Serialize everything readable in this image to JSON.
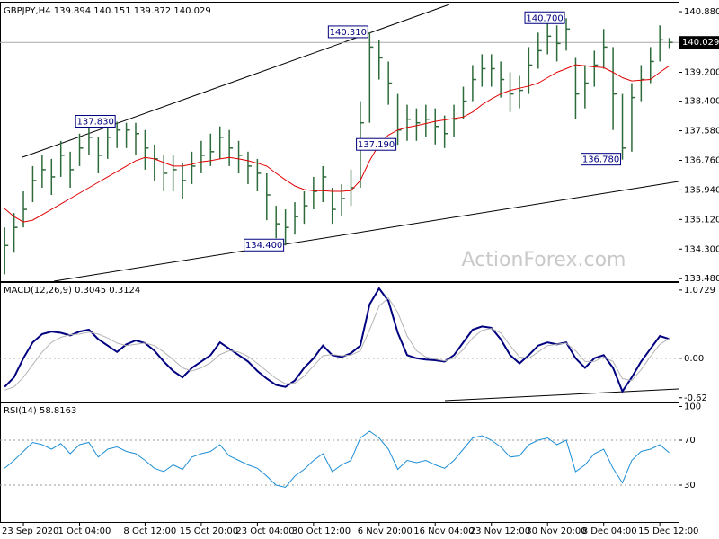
{
  "chart_data": [
    {
      "type": "ohlc",
      "title": "GBPJPY,H4  139.894 140.151 139.872 140.029",
      "watermark": "ActionForex.com",
      "color": "#2e6b3a",
      "last_price": 140.029,
      "xlim": [
        -0.5,
        72
      ],
      "ylim": [
        133.41,
        141.08
      ],
      "yticks": [
        {
          "value": 140.88,
          "label": "140.880"
        },
        {
          "value": 139.2,
          "label": "139.200"
        },
        {
          "value": 138.4,
          "label": "138.400"
        },
        {
          "value": 137.58,
          "label": "137.580"
        },
        {
          "value": 136.76,
          "label": "136.760"
        },
        {
          "value": 135.94,
          "label": "135.940"
        },
        {
          "value": 135.12,
          "label": "135.120"
        },
        {
          "value": 134.3,
          "label": "134.300"
        },
        {
          "value": 133.48,
          "label": "133.480"
        }
      ],
      "high": [
        134.9,
        135.3,
        135.9,
        136.6,
        136.9,
        136.8,
        137.3,
        137.0,
        137.5,
        137.7,
        137.4,
        137.7,
        137.83,
        137.8,
        137.8,
        137.6,
        137.2,
        136.9,
        136.9,
        136.7,
        137.0,
        137.3,
        137.5,
        137.7,
        137.6,
        137.3,
        137.0,
        136.8,
        136.4,
        135.5,
        135.4,
        135.6,
        135.9,
        136.3,
        136.6,
        136.0,
        136.1,
        136.5,
        138.4,
        140.31,
        140.1,
        139.5,
        138.6,
        138.3,
        138.2,
        138.3,
        138.2,
        138.0,
        138.3,
        138.8,
        139.4,
        139.7,
        139.7,
        139.5,
        139.2,
        139.1,
        139.9,
        140.3,
        140.6,
        140.5,
        140.7,
        139.6,
        139.4,
        139.8,
        140.4,
        139.9,
        138.6,
        138.9,
        139.4,
        139.9,
        140.5,
        140.151
      ],
      "low": [
        133.6,
        134.2,
        134.9,
        135.6,
        136.0,
        135.8,
        136.3,
        136.0,
        136.6,
        136.9,
        136.4,
        136.8,
        137.1,
        137.1,
        136.9,
        136.5,
        136.2,
        135.9,
        135.9,
        135.7,
        136.1,
        136.4,
        136.6,
        136.8,
        136.6,
        136.4,
        136.1,
        135.9,
        135.1,
        134.6,
        134.4,
        134.7,
        135.0,
        135.4,
        135.6,
        135.0,
        135.2,
        135.5,
        136.0,
        137.8,
        139.0,
        138.3,
        137.19,
        137.3,
        137.3,
        137.4,
        137.2,
        137.1,
        137.4,
        137.9,
        138.4,
        138.8,
        138.8,
        138.5,
        138.1,
        138.2,
        138.6,
        139.3,
        139.7,
        139.5,
        139.8,
        137.9,
        138.2,
        138.8,
        139.3,
        137.6,
        136.78,
        137.0,
        138.4,
        138.9,
        139.5,
        139.872
      ],
      "close": [
        134.4,
        134.9,
        135.4,
        136.2,
        136.5,
        136.3,
        136.9,
        136.5,
        137.1,
        137.4,
        136.9,
        137.4,
        137.6,
        137.6,
        137.5,
        137.1,
        136.8,
        136.4,
        136.5,
        136.2,
        136.6,
        136.9,
        137.0,
        137.4,
        137.1,
        136.9,
        136.6,
        136.4,
        135.8,
        135.0,
        134.9,
        135.2,
        135.5,
        135.9,
        136.3,
        135.4,
        135.7,
        136.0,
        137.8,
        139.9,
        139.6,
        138.9,
        137.6,
        137.9,
        137.8,
        137.9,
        137.7,
        137.5,
        137.9,
        138.4,
        139.0,
        139.3,
        139.3,
        139.0,
        138.6,
        138.7,
        139.4,
        139.8,
        140.2,
        140.0,
        140.4,
        138.6,
        138.9,
        139.4,
        139.9,
        138.6,
        137.1,
        138.5,
        139.0,
        139.5,
        140.1,
        140.029
      ],
      "series": [
        {
          "color": "#e00000",
          "values": [
            135.42,
            135.2,
            135.05,
            135.1,
            135.25,
            135.4,
            135.55,
            135.7,
            135.85,
            136.0,
            136.15,
            136.3,
            136.45,
            136.6,
            136.75,
            136.84,
            136.8,
            136.7,
            136.6,
            136.6,
            136.65,
            136.72,
            136.75,
            136.8,
            136.84,
            136.8,
            136.75,
            136.68,
            136.6,
            136.4,
            136.22,
            136.05,
            135.95,
            135.92,
            135.92,
            135.9,
            135.9,
            135.92,
            136.2,
            136.75,
            137.2,
            137.46,
            137.6,
            137.67,
            137.72,
            137.78,
            137.84,
            137.88,
            137.92,
            137.96,
            138.1,
            138.3,
            138.46,
            138.6,
            138.7,
            138.76,
            138.82,
            138.9,
            139.05,
            139.2,
            139.3,
            139.41,
            139.38,
            139.35,
            139.33,
            139.2,
            139.05,
            138.96,
            138.98,
            139.0,
            139.2,
            139.38
          ]
        }
      ],
      "annotations": [
        {
          "label": "140.310",
          "value": 140.31,
          "x": 39
        },
        {
          "label": "137.830",
          "value": 137.83,
          "x": 12
        },
        {
          "label": "140.700",
          "value": 140.7,
          "x": 60
        },
        {
          "label": "137.190",
          "value": 137.19,
          "x": 42
        },
        {
          "label": "136.780",
          "value": 136.78,
          "x": 66
        },
        {
          "label": "134.400",
          "value": 134.4,
          "x": 30
        }
      ]
    },
    {
      "type": "line",
      "title": "MACD(12,26,9) 0.3045 0.3124",
      "xlim": [
        -0.5,
        72
      ],
      "ylim": [
        -0.68,
        1.17
      ],
      "yticks": [
        {
          "value": 1.0729,
          "label": "1.0729"
        },
        {
          "value": 0,
          "label": "0.00"
        },
        -0.62
      ],
      "zero_line": 0,
      "series": [
        {
          "color": "#000080",
          "width": 2,
          "values": [
            -0.45,
            -0.3,
            0.0,
            0.25,
            0.38,
            0.42,
            0.4,
            0.36,
            0.42,
            0.45,
            0.3,
            0.2,
            0.1,
            0.22,
            0.28,
            0.24,
            0.12,
            -0.05,
            -0.2,
            -0.3,
            -0.15,
            -0.05,
            0.05,
            0.25,
            0.15,
            0.05,
            -0.05,
            -0.2,
            -0.32,
            -0.42,
            -0.45,
            -0.35,
            -0.15,
            0.0,
            0.2,
            0.05,
            0.02,
            0.08,
            0.2,
            0.85,
            1.1,
            0.9,
            0.4,
            0.05,
            0.0,
            -0.02,
            -0.03,
            -0.05,
            0.05,
            0.25,
            0.45,
            0.5,
            0.48,
            0.3,
            0.05,
            -0.08,
            0.05,
            0.2,
            0.25,
            0.22,
            0.25,
            0.0,
            -0.15,
            0.0,
            0.05,
            -0.15,
            -0.52,
            -0.3,
            -0.05,
            0.15,
            0.35,
            0.3045
          ]
        },
        {
          "color": "#b4b4b4",
          "width": 1,
          "values": [
            -0.5,
            -0.45,
            -0.3,
            -0.1,
            0.1,
            0.25,
            0.33,
            0.37,
            0.38,
            0.41,
            0.38,
            0.32,
            0.24,
            0.2,
            0.22,
            0.24,
            0.2,
            0.1,
            -0.02,
            -0.15,
            -0.2,
            -0.15,
            -0.07,
            0.06,
            0.12,
            0.1,
            0.03,
            -0.08,
            -0.2,
            -0.32,
            -0.4,
            -0.39,
            -0.28,
            -0.12,
            0.04,
            0.06,
            0.04,
            0.05,
            0.12,
            0.45,
            0.82,
            0.95,
            0.72,
            0.35,
            0.12,
            0.02,
            -0.01,
            -0.04,
            0.0,
            0.14,
            0.32,
            0.44,
            0.47,
            0.4,
            0.2,
            0.02,
            0.0,
            0.1,
            0.2,
            0.22,
            0.24,
            0.12,
            -0.05,
            -0.05,
            0.02,
            -0.05,
            -0.32,
            -0.35,
            -0.18,
            0.03,
            0.22,
            0.3124
          ]
        }
      ]
    },
    {
      "type": "line",
      "title": "RSI(14) 58.8163",
      "xlim": [
        -0.5,
        72
      ],
      "ylim": [
        -2,
        102
      ],
      "yticks": [
        100,
        70,
        30
      ],
      "levels": [
        70,
        30
      ],
      "xticks": [
        {
          "value": 2,
          "label": "23 Sep 2020"
        },
        {
          "value": 8,
          "label": "1 Oct 04:00"
        },
        {
          "value": 15,
          "label": "8 Oct 12:00"
        },
        {
          "value": 21,
          "label": "15 Oct 20:00"
        },
        {
          "value": 27,
          "label": "23 Oct 04:00"
        },
        {
          "value": 33,
          "label": "30 Oct 12:00"
        },
        {
          "value": 40,
          "label": "6 Nov 20:00"
        },
        {
          "value": 46,
          "label": "16 Nov 04:00"
        },
        {
          "value": 52,
          "label": "23 Nov 12:00"
        },
        {
          "value": 58,
          "label": "30 Nov 20:00"
        },
        {
          "value": 64,
          "label": "8 Dec 04:00"
        },
        {
          "value": 70,
          "label": "15 Dec 12:00"
        }
      ],
      "series": [
        {
          "color": "#1e8fd6",
          "width": 1,
          "values": [
            45,
            52,
            60,
            68,
            66,
            62,
            67,
            58,
            66,
            68,
            55,
            62,
            64,
            60,
            58,
            52,
            45,
            42,
            48,
            44,
            55,
            58,
            60,
            66,
            56,
            52,
            48,
            45,
            38,
            30,
            28,
            38,
            44,
            52,
            58,
            42,
            48,
            52,
            72,
            78,
            72,
            62,
            44,
            52,
            50,
            52,
            48,
            45,
            52,
            62,
            72,
            74,
            70,
            64,
            55,
            56,
            66,
            70,
            72,
            66,
            70,
            42,
            48,
            58,
            62,
            45,
            32,
            52,
            60,
            62,
            66,
            58.8163
          ]
        }
      ]
    }
  ]
}
